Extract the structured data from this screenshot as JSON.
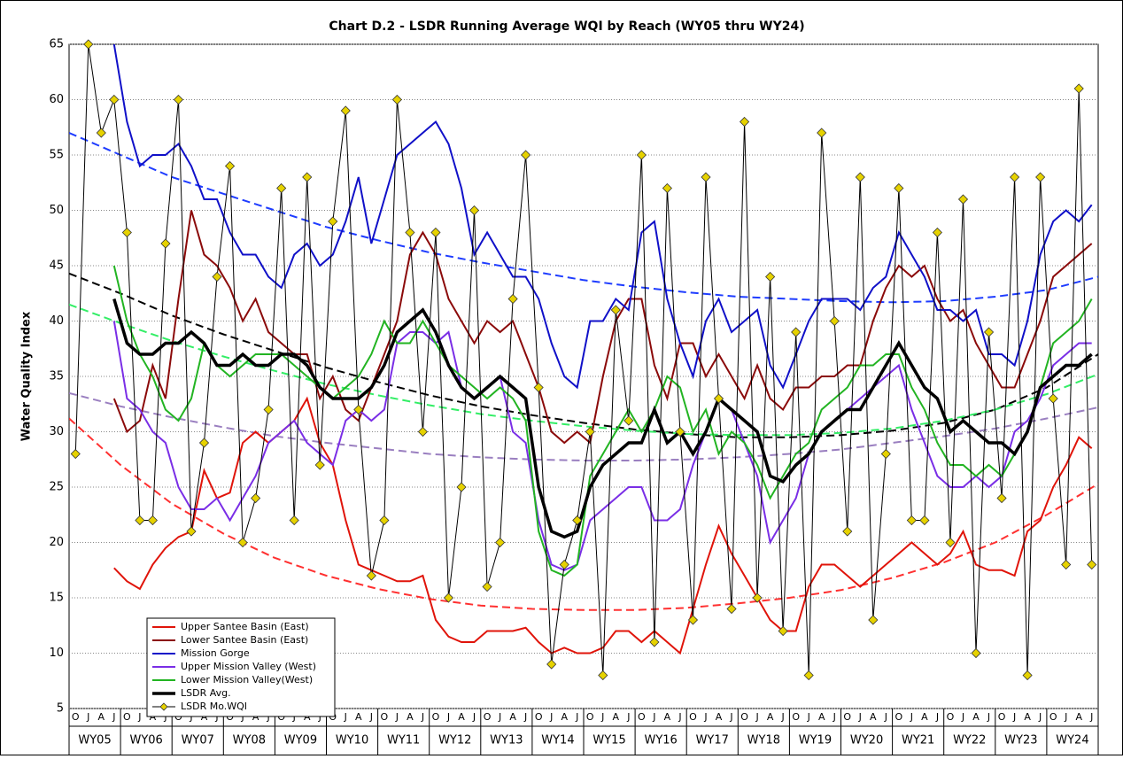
{
  "chart_data": {
    "type": "line",
    "title": "Chart D.2 - LSDR Running Average WQI by Reach (WY05 thru WY24)",
    "y_label": "Water Quality Index",
    "categories": [
      "O",
      "J",
      "A",
      "J",
      "O",
      "J",
      "A",
      "J",
      "O",
      "J",
      "A",
      "J",
      "O",
      "J",
      "A",
      "J",
      "O",
      "J",
      "A",
      "J",
      "O",
      "J",
      "A",
      "J",
      "O",
      "J",
      "A",
      "J",
      "O",
      "J",
      "A",
      "J",
      "O",
      "J",
      "A",
      "J",
      "O",
      "J",
      "A",
      "J",
      "O",
      "J",
      "A",
      "J",
      "O",
      "J",
      "A",
      "J",
      "O",
      "J",
      "A",
      "J",
      "O",
      "J",
      "A",
      "J",
      "O",
      "J",
      "A",
      "J",
      "O",
      "J",
      "A",
      "J",
      "O",
      "J",
      "A",
      "J",
      "O",
      "J",
      "A",
      "J",
      "O",
      "J",
      "A",
      "J",
      "O",
      "J",
      "A",
      "J"
    ],
    "groups": [
      "WY05",
      "WY06",
      "WY07",
      "WY08",
      "WY09",
      "WY10",
      "WY11",
      "WY12",
      "WY13",
      "WY14",
      "WY15",
      "WY16",
      "WY17",
      "WY18",
      "WY19",
      "WY20",
      "WY21",
      "WY22",
      "WY23",
      "WY24"
    ],
    "ylim": [
      5,
      65
    ],
    "yticks": [
      5,
      10,
      15,
      20,
      25,
      30,
      35,
      40,
      45,
      50,
      55,
      60,
      65
    ],
    "grid": true,
    "series": [
      {
        "name": "Upper Santee Basin (East)",
        "color": "#e0140a",
        "width": 2,
        "values": [
          null,
          null,
          null,
          17.7,
          16.5,
          15.8,
          18,
          19.5,
          20.5,
          21,
          26.5,
          24,
          24.5,
          29,
          30,
          29,
          30,
          31,
          33,
          29,
          27,
          22,
          18,
          17.5,
          17,
          16.5,
          16.5,
          17,
          13,
          11.5,
          11,
          11,
          12,
          12,
          12,
          12.3,
          11,
          10,
          10.5,
          10,
          10,
          10.5,
          12,
          12,
          11,
          12,
          11,
          10,
          14,
          18,
          21.5,
          19,
          17,
          15,
          13,
          12,
          12,
          16,
          18,
          18,
          17,
          16,
          17,
          18,
          19,
          20,
          19,
          18,
          19,
          21,
          18,
          17.5,
          17.5,
          17,
          21,
          22,
          25,
          27,
          29.5,
          28.5
        ]
      },
      {
        "name": "Lower Santee Basin (East)",
        "color": "#8b0a0a",
        "width": 2,
        "values": [
          null,
          null,
          null,
          33,
          30,
          31,
          36,
          33,
          42,
          50,
          46,
          45,
          43,
          40,
          42,
          39,
          38,
          37,
          37,
          33,
          35,
          32,
          31,
          34,
          37,
          40,
          46,
          48,
          46,
          42,
          40,
          38,
          40,
          39,
          40,
          37,
          34,
          30,
          29,
          30,
          29,
          35,
          40,
          42,
          42,
          36,
          33,
          38,
          38,
          35,
          37,
          35,
          33,
          36,
          33,
          32,
          34,
          34,
          35,
          35,
          36,
          36,
          40,
          43,
          45,
          44,
          45,
          42,
          40,
          41,
          38,
          36,
          34,
          34,
          37,
          40,
          44,
          45,
          46,
          47
        ]
      },
      {
        "name": "Mission Gorge",
        "color": "#1010c8",
        "width": 2,
        "values": [
          null,
          null,
          null,
          65,
          58,
          54,
          55,
          55,
          56,
          54,
          51,
          51,
          48,
          46,
          46,
          44,
          43,
          46,
          47,
          45,
          46,
          49,
          53,
          47,
          51,
          55,
          56,
          57,
          58,
          56,
          52,
          46,
          48,
          46,
          44,
          44,
          42,
          38,
          35,
          34,
          40,
          40,
          42,
          41,
          48,
          49,
          42,
          38,
          35,
          40,
          42,
          39,
          40,
          41,
          36,
          34,
          37,
          40,
          42,
          42,
          42,
          41,
          43,
          44,
          48,
          46,
          44,
          41,
          41,
          40,
          41,
          37,
          37,
          36,
          40,
          46,
          49,
          50,
          49,
          50.5
        ]
      },
      {
        "name": "Upper Mission Valley (West)",
        "color": "#7a2ee6",
        "width": 2,
        "values": [
          null,
          null,
          null,
          40,
          33,
          32,
          30,
          29,
          25,
          23,
          23,
          24,
          22,
          24,
          26,
          29,
          30,
          31,
          29,
          28,
          27,
          31,
          32,
          31,
          32,
          38,
          39,
          39,
          38,
          39,
          34,
          33,
          34,
          35,
          30,
          29,
          22,
          18,
          17.5,
          18,
          22,
          23,
          24,
          25,
          25,
          22,
          22,
          23,
          27,
          30,
          33,
          32,
          29,
          26,
          20,
          22,
          24,
          28,
          30,
          31,
          32,
          33,
          34,
          35,
          36,
          32,
          29,
          26,
          25,
          25,
          26,
          25,
          26,
          30,
          31,
          33,
          36,
          37,
          38,
          38
        ]
      },
      {
        "name": "Lower Mission Valley(West)",
        "color": "#22b422",
        "width": 2,
        "values": [
          null,
          null,
          null,
          45,
          40,
          37,
          35,
          32,
          31,
          33,
          38,
          36,
          35,
          36,
          37,
          37,
          37,
          36,
          35,
          34,
          33,
          34,
          35,
          37,
          40,
          38,
          38,
          40,
          38,
          36,
          35,
          34,
          33,
          34,
          33,
          31,
          21,
          17.5,
          17,
          18,
          26,
          28,
          30,
          32,
          30,
          32,
          35,
          34,
          30,
          32,
          28,
          30,
          29,
          27,
          24,
          26,
          28,
          29,
          32,
          33,
          34,
          36,
          36,
          37,
          37,
          34,
          32,
          29,
          27,
          27,
          26,
          27,
          26,
          28,
          30,
          34,
          38,
          39,
          40,
          42
        ]
      },
      {
        "name": "LSDR Avg.",
        "color": "#000000",
        "width": 3.5,
        "values": [
          null,
          null,
          null,
          42,
          38,
          37,
          37,
          38,
          38,
          39,
          38,
          36,
          36,
          37,
          36,
          36,
          37,
          37,
          36,
          34,
          33,
          33,
          33,
          34,
          36,
          39,
          40,
          41,
          39,
          36,
          34,
          33,
          34,
          35,
          34,
          33,
          25,
          21,
          20.5,
          21,
          25,
          27,
          28,
          29,
          29,
          32,
          29,
          30,
          28,
          30,
          33,
          32,
          31,
          30,
          26,
          25.5,
          27,
          28,
          30,
          31,
          32,
          32,
          34,
          36,
          38,
          36,
          34,
          33,
          30,
          31,
          30,
          29,
          29,
          28,
          30,
          34,
          35,
          36,
          36,
          37
        ]
      },
      {
        "name": "LSDR Mo.WQI",
        "color": "#000000",
        "width": 1,
        "marker": "diamond",
        "marker_color": "#e6d200",
        "values": [
          28,
          65,
          57,
          60,
          48,
          22,
          22,
          47,
          60,
          21,
          29,
          44,
          54,
          20,
          24,
          32,
          52,
          22,
          53,
          27,
          49,
          59,
          32,
          17,
          22,
          60,
          48,
          30,
          48,
          15,
          25,
          50,
          16,
          20,
          42,
          55,
          34,
          9,
          18,
          22,
          30,
          8,
          41,
          31,
          55,
          11,
          52,
          30,
          13,
          53,
          33,
          14,
          58,
          15,
          44,
          12,
          39,
          8,
          57,
          40,
          21,
          53,
          13,
          28,
          52,
          22,
          22,
          48,
          20,
          51,
          10,
          39,
          24,
          53,
          8,
          53,
          33,
          18,
          61,
          18
        ]
      }
    ],
    "trendlines": [
      {
        "color": "#1e3cff",
        "values": [
          57,
          55,
          53,
          51.5,
          50,
          48.5,
          47.3,
          46.2,
          45.3,
          44.5,
          43.7,
          43.1,
          42.6,
          42.2,
          42,
          41.8,
          41.7,
          41.8,
          42.2,
          42.8,
          44
        ]
      },
      {
        "color": "#000000",
        "values": [
          44.3,
          42.5,
          40.5,
          38.8,
          37.3,
          35.8,
          34.5,
          33.3,
          32.3,
          31.5,
          30.8,
          30.2,
          29.8,
          29.5,
          29.5,
          29.7,
          30.1,
          30.8,
          32,
          34,
          37
        ]
      },
      {
        "color": "#33ee66",
        "values": [
          41.5,
          39.8,
          38.2,
          36.8,
          35.5,
          34.3,
          33.3,
          32.4,
          31.6,
          31,
          30.5,
          30.1,
          29.8,
          29.7,
          29.7,
          29.9,
          30.3,
          31,
          32,
          33.4,
          35.2
        ]
      },
      {
        "color": "#9a7fc0",
        "values": [
          33.5,
          32.3,
          31.3,
          30.4,
          29.6,
          29,
          28.5,
          28,
          27.7,
          27.5,
          27.4,
          27.4,
          27.5,
          27.7,
          28,
          28.4,
          29,
          29.6,
          30.3,
          31.2,
          32.2
        ]
      },
      {
        "color": "#ff3030",
        "values": [
          31.2,
          27,
          23.5,
          20.8,
          18.6,
          17,
          15.8,
          14.9,
          14.3,
          14,
          13.9,
          13.9,
          14.1,
          14.5,
          15,
          15.7,
          16.8,
          18.2,
          20,
          22.5,
          25.3
        ]
      }
    ]
  }
}
